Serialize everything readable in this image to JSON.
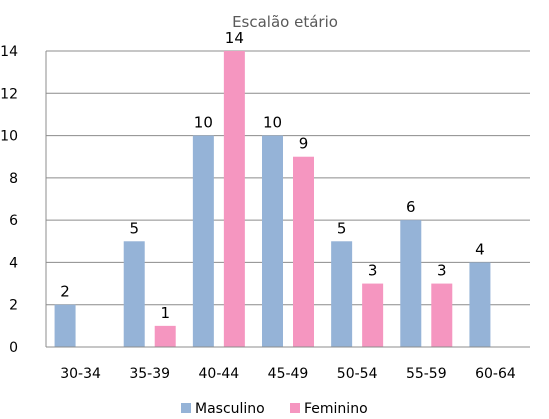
{
  "chart_data": {
    "type": "bar",
    "title": "Escalão etário",
    "xlabel": "",
    "ylabel": "",
    "categories": [
      "30-34",
      "35-39",
      "40-44",
      "45-49",
      "50-54",
      "55-59",
      "60-64"
    ],
    "series": [
      {
        "name": "Masculino",
        "color": "#95b3d7",
        "values": [
          2,
          5,
          10,
          10,
          5,
          6,
          4
        ]
      },
      {
        "name": "Feminino",
        "color": "#f596c0",
        "values": [
          null,
          1,
          14,
          9,
          3,
          3,
          null
        ]
      }
    ],
    "ylim": [
      0,
      14
    ],
    "yticks": [
      0,
      2,
      4,
      6,
      8,
      10,
      12,
      14
    ],
    "grid": true,
    "legend": "bottom"
  }
}
